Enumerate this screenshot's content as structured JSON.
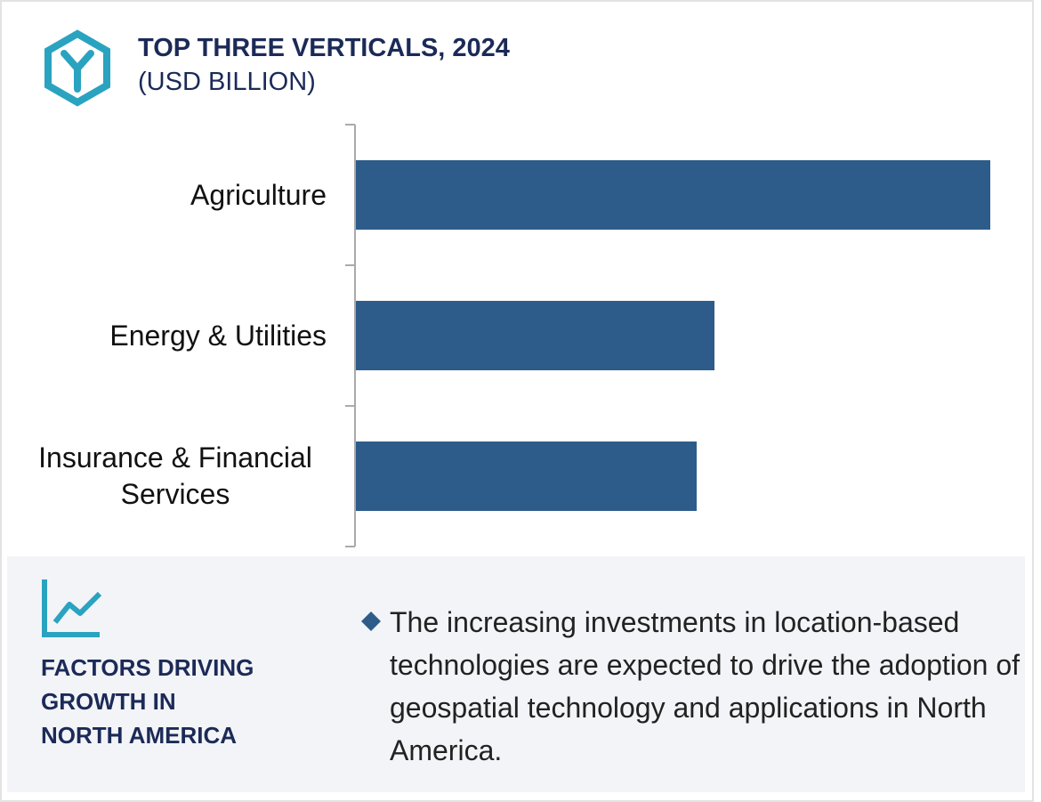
{
  "chart_data": {
    "type": "bar",
    "orientation": "horizontal",
    "title": "TOP THREE VERTICALS, 2024",
    "subtitle": "(USD BILLION)",
    "categories": [
      "Agriculture",
      "Energy & Utilities",
      "Insurance & Financial Services"
    ],
    "values": [
      7.13,
      4.03,
      3.83
    ],
    "color": "#2e5c8a",
    "xlim": [
      0,
      7.2
    ]
  },
  "factors": {
    "title_lines": [
      "FACTORS DRIVING",
      "GROWTH IN",
      "NORTH AMERICA"
    ],
    "bullet": "The increasing investments in location-based technologies are expected to drive the adoption of geospatial technology and applications in North America."
  }
}
